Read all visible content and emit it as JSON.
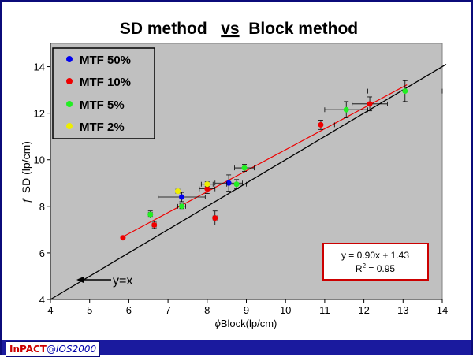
{
  "footer": {
    "brand": "InPACT",
    "separator": "@",
    "event": "IOS2000"
  },
  "fit_box": {
    "line1": "y = 0.90x + 1.43",
    "line2_prefix": "R",
    "line2_sup": "2",
    "line2_suffix": " = 0.95"
  },
  "identity_label": "y=x",
  "colors": {
    "plot_bg": "#c0c0c0",
    "mtf50": "#0000ee",
    "mtf10": "#ee0000",
    "mtf5": "#22ee22",
    "mtf2": "#eeee00",
    "fit_line": "#ee0000",
    "identity_line": "#000000",
    "fit_box_border": "#cc0000",
    "frame": "#0b0b7a"
  },
  "chart_data": {
    "type": "scatter",
    "title_parts": [
      "SD method",
      "vs",
      "Block method"
    ],
    "xlabel_symbol": "ϕ",
    "xlabel": "Block(lp/cm)",
    "ylabel_symbol": "f",
    "ylabel": "SD (lp/cm)",
    "xlim": [
      4,
      14
    ],
    "ylim": [
      4,
      15
    ],
    "xticks": [
      4,
      5,
      6,
      7,
      8,
      9,
      10,
      11,
      12,
      13,
      14
    ],
    "yticks": [
      4,
      6,
      8,
      10,
      12,
      14
    ],
    "grid": false,
    "legend_position": "top-left",
    "series": [
      {
        "name": "MTF 50%",
        "color_key": "mtf50",
        "points": [
          {
            "x": 7.35,
            "y": 8.4,
            "xerr": 0.6,
            "yerr": 0.2
          },
          {
            "x": 8.55,
            "y": 9.0,
            "xerr": 0.35,
            "yerr": 0.35
          }
        ]
      },
      {
        "name": "MTF 10%",
        "color_key": "mtf10",
        "points": [
          {
            "x": 5.85,
            "y": 6.65,
            "xerr": 0,
            "yerr": 0
          },
          {
            "x": 6.65,
            "y": 7.2,
            "xerr": 0.05,
            "yerr": 0.15
          },
          {
            "x": 8.0,
            "y": 8.75,
            "xerr": 0.2,
            "yerr": 0.2
          },
          {
            "x": 8.2,
            "y": 7.5,
            "xerr": 0.05,
            "yerr": 0.3
          },
          {
            "x": 10.9,
            "y": 11.5,
            "xerr": 0.35,
            "yerr": 0.2
          },
          {
            "x": 12.15,
            "y": 12.4,
            "xerr": 0.45,
            "yerr": 0.3
          }
        ]
      },
      {
        "name": "MTF 5%",
        "color_key": "mtf5",
        "points": [
          {
            "x": 6.55,
            "y": 7.65,
            "xerr": 0.05,
            "yerr": 0.15
          },
          {
            "x": 7.35,
            "y": 8.0,
            "xerr": 0.1,
            "yerr": 0.1
          },
          {
            "x": 8.75,
            "y": 8.95,
            "xerr": 0.25,
            "yerr": 0.2
          },
          {
            "x": 8.95,
            "y": 9.65,
            "xerr": 0.25,
            "yerr": 0.15
          },
          {
            "x": 11.55,
            "y": 12.15,
            "xerr": 0.55,
            "yerr": 0.35
          },
          {
            "x": 13.05,
            "y": 12.95,
            "xerr": 0.95,
            "yerr": 0.45
          }
        ]
      },
      {
        "name": "MTF 2%",
        "color_key": "mtf2",
        "points": [
          {
            "x": 7.25,
            "y": 8.65,
            "xerr": 0.05,
            "yerr": 0.05
          },
          {
            "x": 8.0,
            "y": 8.95,
            "xerr": 0.15,
            "yerr": 0.1
          }
        ]
      }
    ],
    "fit_line": {
      "slope": 0.9,
      "intercept": 1.43,
      "x_range": [
        5.85,
        13.1
      ]
    },
    "identity_line": {
      "slope": 1,
      "intercept": 0,
      "x_range": [
        4,
        14.1
      ]
    }
  }
}
